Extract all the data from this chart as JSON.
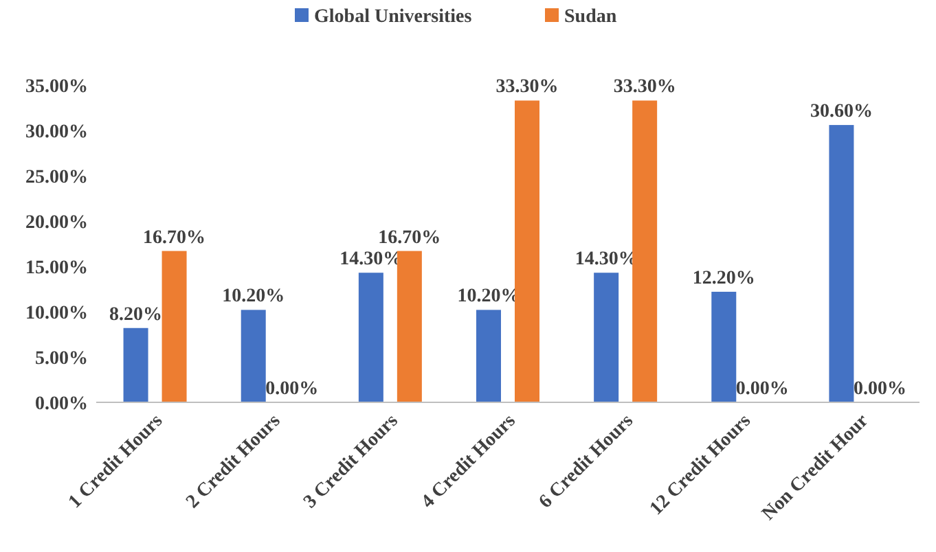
{
  "chart_data": {
    "type": "bar",
    "categories": [
      "1 Credit Hours",
      "2 Credit Hours",
      "3 Credit Hours",
      "4 Credit Hours",
      "6 Credit Hours",
      "12 Credit Hours",
      "Non Credit Hour"
    ],
    "series": [
      {
        "name": "Global Universities",
        "color": "#4472c4",
        "values": [
          8.2,
          10.2,
          14.3,
          10.2,
          14.3,
          12.2,
          30.6
        ],
        "value_labels": [
          "8.20%",
          "10.20%",
          "14.30%",
          "10.20%",
          "14.30%",
          "12.20%",
          "30.60%"
        ]
      },
      {
        "name": "Sudan",
        "color": "#ed7d31",
        "values": [
          16.7,
          0,
          16.7,
          33.3,
          33.3,
          0,
          0
        ],
        "value_labels": [
          "16.70%",
          "0.00%",
          "16.70%",
          "33.30%",
          "33.30%",
          "0.00%",
          "0.00%"
        ]
      }
    ],
    "ylim": [
      0,
      35
    ],
    "yticks": [
      {
        "value": 0,
        "label": "0.00%"
      },
      {
        "value": 5,
        "label": "5.00%"
      },
      {
        "value": 10,
        "label": "10.00%"
      },
      {
        "value": 15,
        "label": "15.00%"
      },
      {
        "value": 20,
        "label": "20.00%"
      },
      {
        "value": 25,
        "label": "25.00%"
      },
      {
        "value": 30,
        "label": "30.00%"
      },
      {
        "value": 35,
        "label": "35.00%"
      }
    ],
    "grid": false,
    "legend": "top"
  }
}
